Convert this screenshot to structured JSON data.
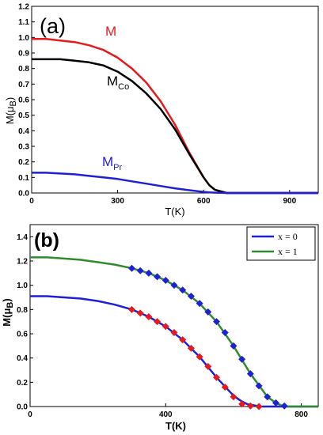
{
  "chart_data": [
    {
      "type": "line",
      "panel_label": "(a)",
      "xlabel": "T(K)",
      "ylabel": "M(μB)",
      "ylabel_main": "M(μ",
      "ylabel_sub": "B",
      "ylabel_end": ")",
      "xlim": [
        0,
        1000
      ],
      "ylim": [
        0,
        1.2
      ],
      "xticks": [
        "0",
        "300",
        "600",
        "900"
      ],
      "yticks": [
        "0.0",
        "0.1",
        "0.2",
        "0.3",
        "0.4",
        "0.5",
        "0.6",
        "0.7",
        "0.8",
        "0.9",
        "1.0",
        "1.1",
        "1.2"
      ],
      "series": [
        {
          "name": "M",
          "label_main": "M",
          "label_sub": "",
          "color": "#e41a1c",
          "x": [
            0,
            50,
            100,
            150,
            200,
            250,
            300,
            350,
            400,
            450,
            500,
            550,
            600,
            620,
            640,
            660,
            680,
            700,
            750,
            1000
          ],
          "y": [
            0.99,
            0.99,
            0.98,
            0.97,
            0.95,
            0.92,
            0.87,
            0.8,
            0.71,
            0.59,
            0.44,
            0.26,
            0.1,
            0.05,
            0.02,
            0.01,
            0.0,
            0.0,
            0.0,
            0.0
          ]
        },
        {
          "name": "MCo",
          "label_main": "M",
          "label_sub": "Co",
          "color": "#000000",
          "x": [
            0,
            50,
            100,
            150,
            200,
            250,
            300,
            350,
            400,
            450,
            500,
            550,
            600,
            620,
            640,
            660,
            680,
            700,
            750,
            1000
          ],
          "y": [
            0.86,
            0.86,
            0.86,
            0.85,
            0.84,
            0.82,
            0.78,
            0.72,
            0.64,
            0.54,
            0.41,
            0.25,
            0.1,
            0.05,
            0.02,
            0.01,
            0.0,
            0.0,
            0.0,
            0.0
          ]
        },
        {
          "name": "MPr",
          "label_main": "M",
          "label_sub": "Pr",
          "color": "#1f1fd6",
          "x": [
            0,
            50,
            100,
            150,
            200,
            250,
            300,
            350,
            400,
            450,
            500,
            550,
            600,
            620,
            640,
            660,
            680,
            700,
            750,
            1000
          ],
          "y": [
            0.13,
            0.13,
            0.125,
            0.12,
            0.11,
            0.1,
            0.09,
            0.075,
            0.06,
            0.045,
            0.03,
            0.018,
            0.007,
            0.004,
            0.002,
            0.001,
            0.0,
            0.0,
            0.0,
            0.0
          ]
        }
      ]
    },
    {
      "type": "line",
      "panel_label": "(b)",
      "xlabel": "T(K)",
      "ylabel": "M(μB)",
      "ylabel_main": "M(μ",
      "ylabel_sub": "B",
      "ylabel_end": ")",
      "xlim": [
        0,
        850
      ],
      "ylim": [
        0,
        1.5
      ],
      "xticks": [
        "0",
        "400",
        "800"
      ],
      "yticks": [
        "0.0",
        "0.2",
        "0.4",
        "0.6",
        "0.8",
        "1.0",
        "1.2",
        "1.4"
      ],
      "legend": "top-right",
      "series": [
        {
          "name": "x = 0",
          "color": "#1f1fd6",
          "x": [
            0,
            50,
            100,
            150,
            200,
            250,
            300,
            350,
            400,
            450,
            500,
            550,
            600,
            620,
            640,
            660,
            680,
            700,
            850
          ],
          "y": [
            0.91,
            0.91,
            0.9,
            0.89,
            0.87,
            0.84,
            0.8,
            0.74,
            0.66,
            0.55,
            0.41,
            0.24,
            0.09,
            0.05,
            0.02,
            0.01,
            0.0,
            0.0,
            0.0
          ]
        },
        {
          "name": "x = 1",
          "color": "#2e8b2e",
          "x": [
            0,
            50,
            100,
            150,
            200,
            250,
            300,
            350,
            400,
            450,
            500,
            550,
            600,
            650,
            700,
            720,
            740,
            760,
            850
          ],
          "y": [
            1.23,
            1.23,
            1.22,
            1.21,
            1.19,
            1.17,
            1.14,
            1.1,
            1.04,
            0.96,
            0.85,
            0.7,
            0.5,
            0.27,
            0.08,
            0.04,
            0.01,
            0.0,
            0.0
          ]
        }
      ],
      "markers": [
        {
          "color": "#e41a1c",
          "x": [
            300,
            325,
            350,
            375,
            400,
            425,
            450,
            475,
            500,
            525,
            550,
            575,
            600,
            625,
            650,
            675
          ],
          "y": [
            0.8,
            0.77,
            0.74,
            0.7,
            0.66,
            0.61,
            0.55,
            0.48,
            0.41,
            0.33,
            0.24,
            0.16,
            0.08,
            0.02,
            0.005,
            0.0
          ]
        },
        {
          "color": "#1f1fd6",
          "x": [
            300,
            325,
            350,
            375,
            400,
            425,
            450,
            475,
            500,
            525,
            550,
            575,
            600,
            625,
            650,
            675,
            700,
            725,
            750
          ],
          "y": [
            1.14,
            1.12,
            1.1,
            1.07,
            1.04,
            1.0,
            0.96,
            0.91,
            0.85,
            0.78,
            0.7,
            0.61,
            0.5,
            0.39,
            0.27,
            0.17,
            0.08,
            0.03,
            0.005
          ]
        }
      ]
    }
  ]
}
